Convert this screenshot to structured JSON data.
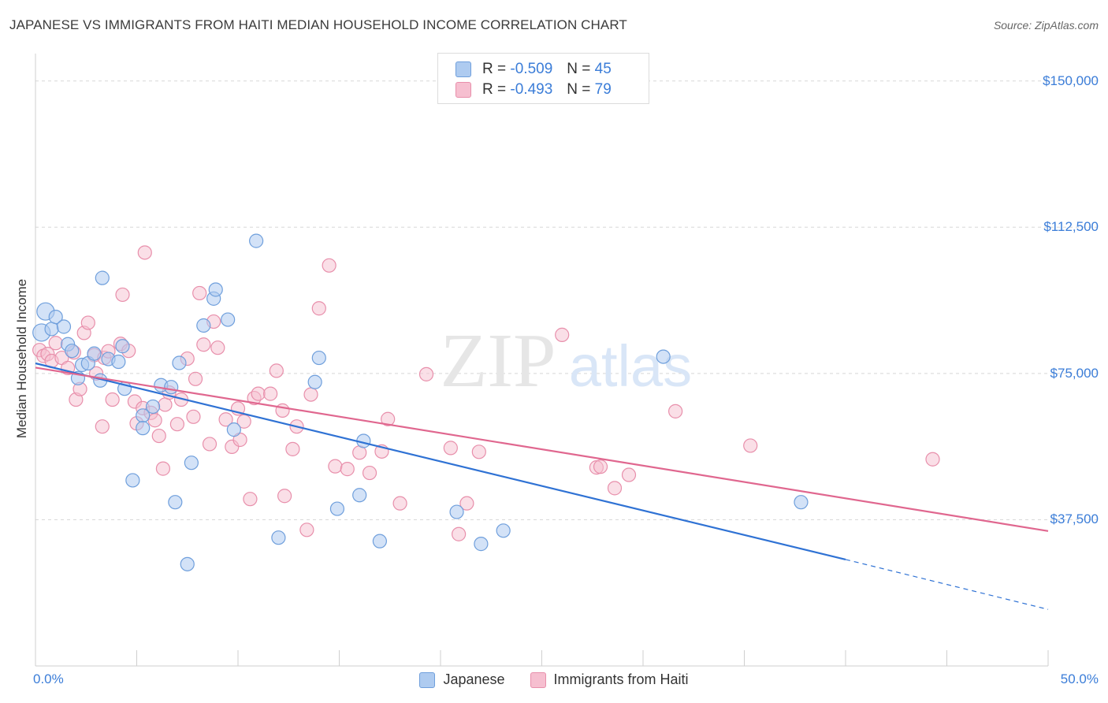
{
  "title": "JAPANESE VS IMMIGRANTS FROM HAITI MEDIAN HOUSEHOLD INCOME CORRELATION CHART",
  "source": "Source: ZipAtlas.com",
  "watermark": {
    "zip": "ZIP",
    "atlas": "atlas"
  },
  "colors": {
    "blue_fill": "#aecbf0",
    "blue_stroke": "#6f9fdc",
    "blue_line": "#2f72d4",
    "pink_fill": "#f6bfd0",
    "pink_stroke": "#e88fab",
    "pink_line": "#e0678f",
    "accent_text": "#3b7dd8",
    "grid": "#d7d7d7"
  },
  "legend": [
    {
      "r_label": "R =",
      "r_value": "-0.509",
      "n_label": "N =",
      "n_value": "45",
      "color": "blue"
    },
    {
      "r_label": "R =",
      "r_value": "-0.493",
      "n_label": "N =",
      "n_value": "79",
      "color": "pink"
    }
  ],
  "chart_data": {
    "type": "scatter",
    "title": "JAPANESE VS IMMIGRANTS FROM HAITI MEDIAN HOUSEHOLD INCOME CORRELATION CHART",
    "xlabel": "",
    "ylabel": "Median Household Income",
    "xlim": [
      0,
      50
    ],
    "ylim": [
      0,
      155000
    ],
    "x_tick_labels": [
      "0.0%",
      "50.0%"
    ],
    "y_ticks": [
      37500,
      75000,
      112500,
      150000
    ],
    "y_tick_labels": [
      "$37,500",
      "$75,000",
      "$112,500",
      "$150,000"
    ],
    "grid": true,
    "series": [
      {
        "name": "Japanese",
        "color": "blue",
        "r": -0.509,
        "n": 45,
        "trend": {
          "x0": 0,
          "y0": 77600,
          "x1": 40,
          "y1": 27300,
          "dash_to_x": 50,
          "dash_to_y": 14500
        },
        "points": [
          [
            0.3,
            85500
          ],
          [
            0.5,
            90900
          ],
          [
            0.8,
            86400
          ],
          [
            1.0,
            89500
          ],
          [
            1.4,
            87000
          ],
          [
            1.6,
            82500
          ],
          [
            1.8,
            80800
          ],
          [
            2.1,
            73800
          ],
          [
            2.3,
            77200
          ],
          [
            2.6,
            77600
          ],
          [
            2.9,
            80100
          ],
          [
            3.2,
            73200
          ],
          [
            3.3,
            99500
          ],
          [
            3.6,
            78700
          ],
          [
            4.1,
            78000
          ],
          [
            4.3,
            82000
          ],
          [
            4.4,
            71100
          ],
          [
            4.8,
            47600
          ],
          [
            5.3,
            64200
          ],
          [
            5.3,
            61000
          ],
          [
            5.8,
            66500
          ],
          [
            6.2,
            72000
          ],
          [
            6.7,
            71500
          ],
          [
            6.9,
            42000
          ],
          [
            7.1,
            77700
          ],
          [
            7.5,
            26100
          ],
          [
            7.7,
            52100
          ],
          [
            8.3,
            87300
          ],
          [
            8.8,
            94200
          ],
          [
            8.9,
            96500
          ],
          [
            9.5,
            88800
          ],
          [
            9.8,
            60600
          ],
          [
            10.9,
            109000
          ],
          [
            12.0,
            32900
          ],
          [
            13.8,
            72800
          ],
          [
            14.0,
            79000
          ],
          [
            14.9,
            40300
          ],
          [
            16.0,
            43800
          ],
          [
            16.2,
            57700
          ],
          [
            17.0,
            32000
          ],
          [
            20.8,
            39500
          ],
          [
            22.0,
            31300
          ],
          [
            23.1,
            34700
          ],
          [
            31.0,
            79300
          ],
          [
            37.8,
            42000
          ]
        ]
      },
      {
        "name": "Immigrants from Haiti",
        "color": "pink",
        "r": -0.493,
        "n": 79,
        "trend": {
          "x0": 0,
          "y0": 76500,
          "x1": 50,
          "y1": 34600
        },
        "points": [
          [
            0.2,
            81000
          ],
          [
            0.4,
            79500
          ],
          [
            0.6,
            80000
          ],
          [
            0.8,
            78200
          ],
          [
            1.0,
            82800
          ],
          [
            1.3,
            79000
          ],
          [
            1.6,
            76400
          ],
          [
            1.9,
            80400
          ],
          [
            2.0,
            68300
          ],
          [
            2.2,
            71000
          ],
          [
            2.4,
            85400
          ],
          [
            2.6,
            88000
          ],
          [
            2.9,
            79700
          ],
          [
            3.0,
            75000
          ],
          [
            3.3,
            61400
          ],
          [
            3.4,
            79000
          ],
          [
            3.6,
            80700
          ],
          [
            3.8,
            68300
          ],
          [
            4.2,
            82600
          ],
          [
            4.3,
            95200
          ],
          [
            4.6,
            80800
          ],
          [
            4.9,
            67800
          ],
          [
            5.0,
            62200
          ],
          [
            5.3,
            66100
          ],
          [
            5.4,
            106000
          ],
          [
            5.7,
            64900
          ],
          [
            5.9,
            63000
          ],
          [
            6.1,
            59000
          ],
          [
            6.3,
            50600
          ],
          [
            6.4,
            67000
          ],
          [
            6.6,
            70100
          ],
          [
            7.0,
            62000
          ],
          [
            7.2,
            68300
          ],
          [
            7.5,
            78800
          ],
          [
            7.8,
            63900
          ],
          [
            7.9,
            73600
          ],
          [
            8.1,
            95600
          ],
          [
            8.3,
            82400
          ],
          [
            8.6,
            56900
          ],
          [
            8.8,
            88300
          ],
          [
            9.0,
            81600
          ],
          [
            9.4,
            63200
          ],
          [
            9.7,
            56200
          ],
          [
            10.0,
            66000
          ],
          [
            10.1,
            58000
          ],
          [
            10.3,
            62700
          ],
          [
            10.6,
            42800
          ],
          [
            10.8,
            68700
          ],
          [
            11.0,
            69800
          ],
          [
            11.6,
            69800
          ],
          [
            11.9,
            75700
          ],
          [
            12.2,
            65500
          ],
          [
            12.3,
            43600
          ],
          [
            12.7,
            55600
          ],
          [
            12.9,
            61400
          ],
          [
            13.4,
            34900
          ],
          [
            13.6,
            69600
          ],
          [
            14.0,
            91700
          ],
          [
            14.5,
            102700
          ],
          [
            14.8,
            51200
          ],
          [
            15.4,
            50500
          ],
          [
            16.0,
            54700
          ],
          [
            16.5,
            49500
          ],
          [
            17.1,
            55000
          ],
          [
            17.4,
            63300
          ],
          [
            18.0,
            41700
          ],
          [
            19.3,
            74800
          ],
          [
            20.5,
            55900
          ],
          [
            20.9,
            33800
          ],
          [
            21.3,
            41700
          ],
          [
            21.9,
            54900
          ],
          [
            26.0,
            84900
          ],
          [
            27.7,
            50900
          ],
          [
            27.9,
            51100
          ],
          [
            28.6,
            45600
          ],
          [
            29.3,
            49000
          ],
          [
            31.6,
            65300
          ],
          [
            35.3,
            56500
          ],
          [
            44.3,
            53000
          ]
        ]
      }
    ]
  },
  "bottom_legend": [
    "Japanese",
    "Immigrants from Haiti"
  ]
}
